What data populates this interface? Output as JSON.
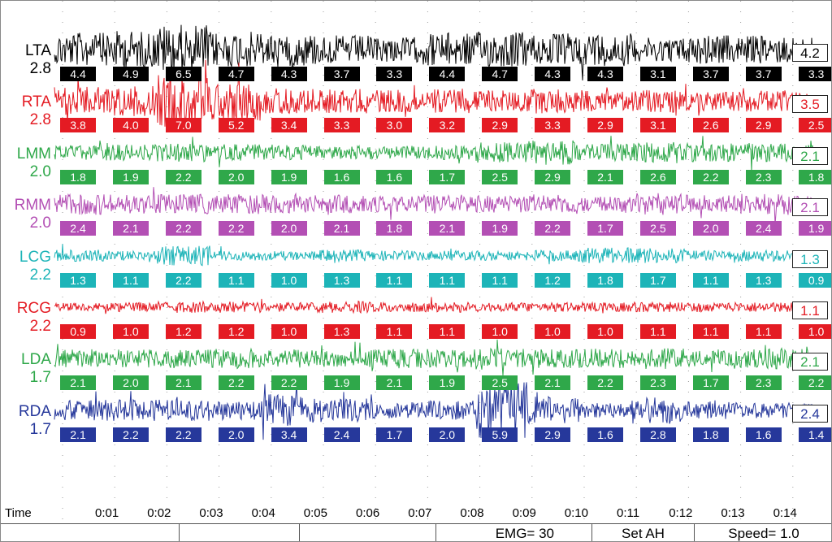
{
  "time_axis": {
    "title": "Time",
    "ticks": [
      "0:01",
      "0:02",
      "0:03",
      "0:04",
      "0:05",
      "0:06",
      "0:07",
      "0:08",
      "0:09",
      "0:10",
      "0:11",
      "0:12",
      "0:13",
      "0:14"
    ]
  },
  "channels": [
    {
      "name": "LTA",
      "gain": "2.8",
      "color": "#000000",
      "current": "4.2",
      "amp": 22,
      "segments": [
        "4.4",
        "4.9",
        "6.5",
        "4.7",
        "4.3",
        "3.7",
        "3.3",
        "4.4",
        "4.7",
        "4.3",
        "4.3",
        "3.1",
        "3.7",
        "3.7",
        "3.3"
      ]
    },
    {
      "name": "RTA",
      "gain": "2.8",
      "color": "#e41b23",
      "current": "3.5",
      "amp": 18,
      "segments": [
        "3.8",
        "4.0",
        "7.0",
        "5.2",
        "3.4",
        "3.3",
        "3.0",
        "3.2",
        "2.9",
        "3.3",
        "2.9",
        "3.1",
        "2.6",
        "2.9",
        "2.5"
      ]
    },
    {
      "name": "LMM",
      "gain": "2.0",
      "color": "#2fa84a",
      "current": "2.1",
      "amp": 12,
      "segments": [
        "1.8",
        "1.9",
        "2.2",
        "2.0",
        "1.9",
        "1.6",
        "1.6",
        "1.7",
        "2.5",
        "2.9",
        "2.1",
        "2.6",
        "2.2",
        "2.3",
        "1.8"
      ]
    },
    {
      "name": "RMM",
      "gain": "2.0",
      "color": "#b34fb4",
      "current": "2.1",
      "amp": 13,
      "segments": [
        "2.4",
        "2.1",
        "2.2",
        "2.2",
        "2.0",
        "2.1",
        "1.8",
        "2.1",
        "1.9",
        "2.2",
        "1.7",
        "2.5",
        "2.0",
        "2.4",
        "1.9"
      ]
    },
    {
      "name": "LCG",
      "gain": "2.2",
      "color": "#1db4b8",
      "current": "1.3",
      "amp": 8,
      "segments": [
        "1.3",
        "1.1",
        "2.2",
        "1.1",
        "1.0",
        "1.3",
        "1.1",
        "1.1",
        "1.1",
        "1.2",
        "1.8",
        "1.7",
        "1.1",
        "1.3",
        "0.9"
      ]
    },
    {
      "name": "RCG",
      "gain": "2.2",
      "color": "#e41b23",
      "current": "1.1",
      "amp": 7,
      "segments": [
        "0.9",
        "1.0",
        "1.2",
        "1.2",
        "1.0",
        "1.3",
        "1.1",
        "1.1",
        "1.0",
        "1.0",
        "1.0",
        "1.1",
        "1.1",
        "1.1",
        "1.0"
      ]
    },
    {
      "name": "LDA",
      "gain": "1.7",
      "color": "#2fa84a",
      "current": "2.1",
      "amp": 13,
      "segments": [
        "2.1",
        "2.0",
        "2.1",
        "2.2",
        "2.2",
        "1.9",
        "2.1",
        "1.9",
        "2.5",
        "2.1",
        "2.2",
        "2.3",
        "1.7",
        "2.3",
        "2.2"
      ]
    },
    {
      "name": "RDA",
      "gain": "1.7",
      "color": "#26389b",
      "current": "2.4",
      "amp": 16,
      "segments": [
        "2.1",
        "2.2",
        "2.2",
        "2.0",
        "3.4",
        "2.4",
        "1.7",
        "2.0",
        "5.9",
        "2.9",
        "1.6",
        "2.8",
        "1.8",
        "1.6",
        "1.4"
      ]
    }
  ],
  "status_bar": {
    "emg": "EMG= 30",
    "set": "Set AH",
    "speed": "Speed= 1.0"
  }
}
